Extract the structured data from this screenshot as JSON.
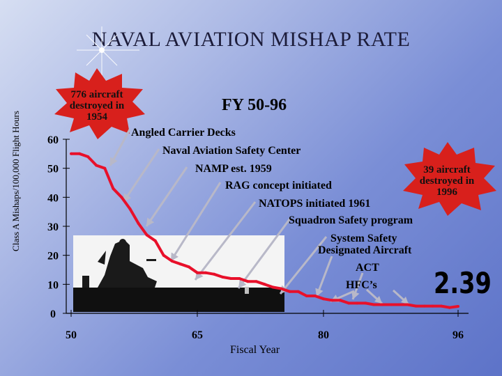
{
  "slide_title": "NAVAL AVIATION MISHAP RATE",
  "fiscal_range": "FY 50-96",
  "starbursts": {
    "left": {
      "lines": [
        "776 aircraft",
        "destroyed in",
        "1954"
      ],
      "color": "#d8201c"
    },
    "right": {
      "lines": [
        "39 aircraft",
        "destroyed in",
        "1996"
      ],
      "color": "#d8201c"
    }
  },
  "current_rate": "2.39",
  "annotations": [
    "Angled Carrier Decks",
    "Naval Aviation Safety Center",
    "NAMP est. 1959",
    "RAG concept initiated",
    "NATOPS initiated 1961",
    "Squadron Safety program",
    "System Safety",
    "Designated Aircraft",
    "ACT",
    "HFC’s"
  ],
  "chart_data": {
    "type": "line",
    "title": "NAVAL AVIATION MISHAP RATE",
    "xlabel": "Fiscal Year",
    "ylabel": "Class A Mishaps/100,000 Flight Hours",
    "xlim": [
      50,
      96
    ],
    "ylim": [
      0,
      60
    ],
    "x_tick_labels": [
      "50",
      "65",
      "80",
      "96"
    ],
    "y_tick_labels": [
      "0",
      "10",
      "20",
      "30",
      "40",
      "50",
      "60"
    ],
    "line_color": "#e8102a",
    "series": [
      {
        "x": [
          50,
          51,
          52,
          53,
          54,
          55,
          56,
          57,
          58,
          59,
          60,
          61,
          62,
          63,
          64,
          65,
          66,
          67,
          68,
          69,
          70,
          71,
          72,
          73,
          74,
          75,
          76,
          77,
          78,
          79,
          80,
          81,
          82,
          83,
          84,
          85,
          86,
          87,
          88,
          89,
          90,
          91,
          92,
          93,
          94,
          95,
          96
        ],
        "values": [
          55,
          55,
          54,
          51,
          50,
          43,
          40,
          36,
          31,
          27,
          25,
          20,
          18,
          17,
          16,
          14,
          14,
          13.5,
          12.5,
          12,
          12,
          11,
          11,
          10,
          9,
          8.5,
          7.5,
          7.5,
          6,
          6,
          5,
          4.5,
          4.5,
          3.5,
          3.5,
          3.5,
          3,
          3,
          3,
          3,
          3,
          2.5,
          2.5,
          2.5,
          2.5,
          2,
          2.39
        ]
      }
    ]
  }
}
